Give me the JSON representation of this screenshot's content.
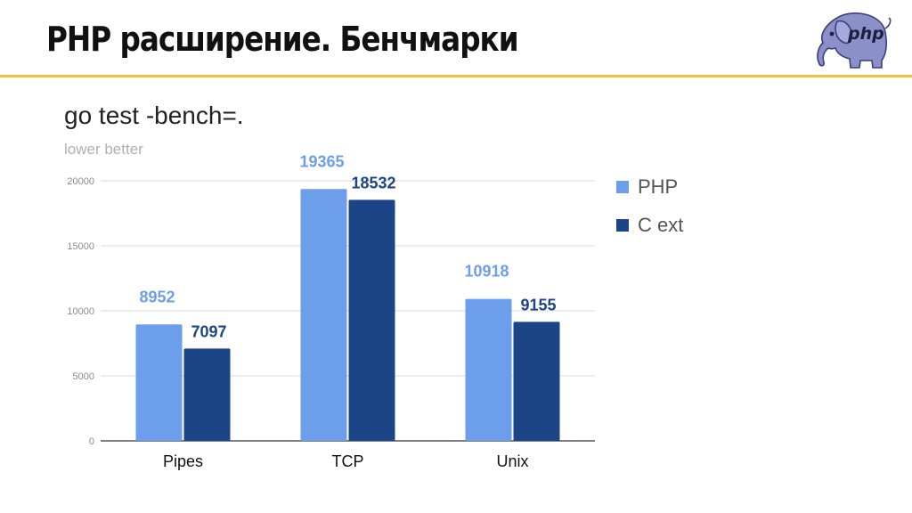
{
  "slide": {
    "title": "PHP расширение. Бенчмарки",
    "logo_text": "php",
    "logo_icon": "php-elephant-icon",
    "accent_color": "#f3c13a"
  },
  "chart_data": {
    "type": "bar",
    "title": "go test -bench=.",
    "subtitle": "lower better",
    "xlabel": "",
    "ylabel": "",
    "categories": [
      "Pipes",
      "TCP",
      "Unix"
    ],
    "series": [
      {
        "name": "PHP",
        "values": [
          8952,
          19365,
          10918
        ],
        "color": "#6d9eeb"
      },
      {
        "name": "C ext",
        "values": [
          7097,
          18532,
          9155
        ],
        "color": "#1c4587"
      }
    ],
    "ylim": [
      0,
      20000
    ],
    "yticks": [
      "0",
      "5000",
      "10000",
      "15000",
      "20000"
    ],
    "grid": true,
    "legend": "right",
    "data_labels": true
  }
}
